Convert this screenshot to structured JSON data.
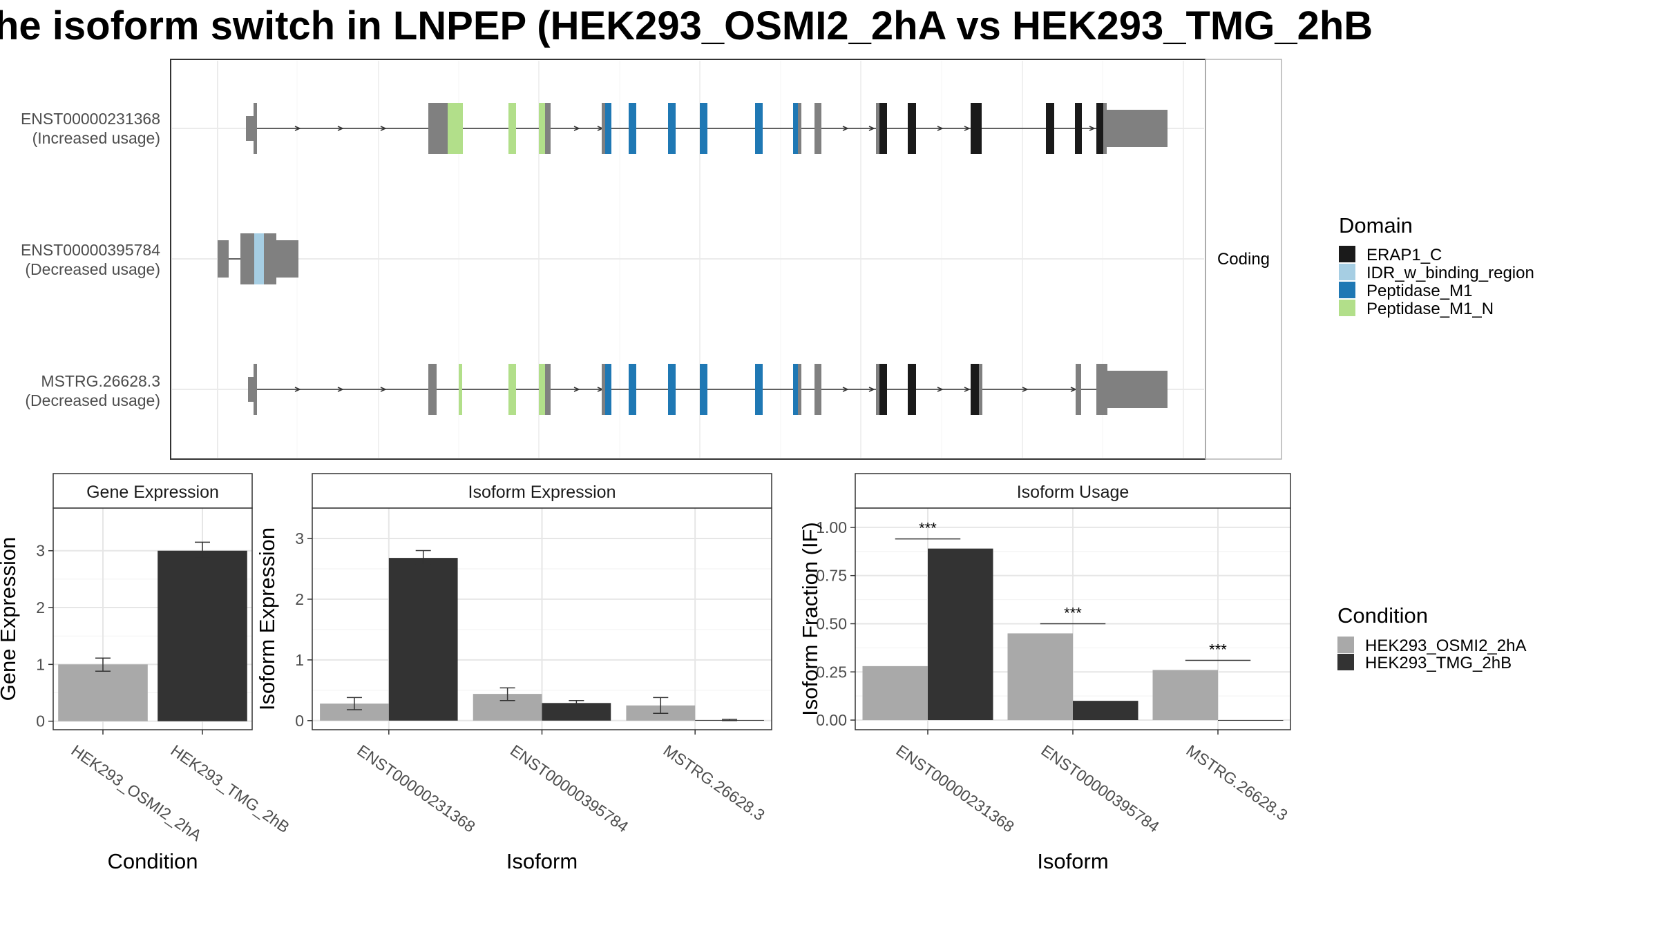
{
  "title": "he isoform switch in LNPEP (HEK293_OSMI2_2hA vs HEK293_TMG_2hB",
  "structure": {
    "strip_label": "Coding",
    "transcripts": [
      {
        "name": "ENST00000231368",
        "usage": "(Increased usage)"
      },
      {
        "name": "ENST00000395784",
        "usage": "(Decreased usage)"
      },
      {
        "name": "MSTRG.26628.3",
        "usage": "(Decreased usage)"
      }
    ]
  },
  "legends": {
    "domain": {
      "title": "Domain",
      "items": [
        {
          "label": "ERAP1_C",
          "color": "#1a1a1a"
        },
        {
          "label": "IDR_w_binding_region",
          "color": "#a6cee3"
        },
        {
          "label": "Peptidase_M1",
          "color": "#1f78b4"
        },
        {
          "label": "Peptidase_M1_N",
          "color": "#b2df8a"
        }
      ]
    },
    "condition": {
      "title": "Condition",
      "items": [
        {
          "label": "HEK293_OSMI2_2hA",
          "color": "#a9a9a9"
        },
        {
          "label": "HEK293_TMG_2hB",
          "color": "#333333"
        }
      ]
    }
  },
  "colors": {
    "noncoding": "#808080",
    "cond_a": "#a9a9a9",
    "cond_b": "#333333"
  },
  "chart_data": [
    {
      "type": "bar",
      "title": "Gene Expression",
      "xlabel": "Condition",
      "ylabel": "Gene Expression",
      "categories": [
        "HEK293_OSMI2_2hA",
        "HEK293_TMG_2hB"
      ],
      "values": [
        1.0,
        3.0
      ],
      "error": [
        [
          0.88,
          1.11
        ],
        [
          2.87,
          3.15
        ]
      ],
      "yticks": [
        0,
        1,
        2,
        3
      ],
      "ylim": [
        -0.15,
        3.75
      ]
    },
    {
      "type": "bar",
      "title": "Isoform Expression",
      "xlabel": "Isoform",
      "ylabel": "Isoform Expression",
      "categories": [
        "ENST00000231368",
        "ENST00000395784",
        "MSTRG.26628.3"
      ],
      "series": [
        {
          "name": "HEK293_OSMI2_2hA",
          "values": [
            0.28,
            0.44,
            0.25
          ],
          "error": [
            [
              0.18,
              0.38
            ],
            [
              0.33,
              0.54
            ],
            [
              0.12,
              0.38
            ]
          ]
        },
        {
          "name": "HEK293_TMG_2hB",
          "values": [
            2.68,
            0.29,
            0.01
          ],
          "error": [
            [
              2.57,
              2.8
            ],
            [
              0.25,
              0.33
            ],
            [
              0.0,
              0.02
            ]
          ]
        }
      ],
      "yticks": [
        0,
        1,
        2,
        3
      ],
      "ylim": [
        -0.15,
        3.5
      ]
    },
    {
      "type": "bar",
      "title": "Isoform Usage",
      "xlabel": "Isoform",
      "ylabel": "Isoform Fraction (IF)",
      "categories": [
        "ENST00000231368",
        "ENST00000395784",
        "MSTRG.26628.3"
      ],
      "series": [
        {
          "name": "HEK293_OSMI2_2hA",
          "values": [
            0.28,
            0.45,
            0.26
          ]
        },
        {
          "name": "HEK293_TMG_2hB",
          "values": [
            0.89,
            0.1,
            0.0
          ]
        }
      ],
      "significance": [
        "***",
        "***",
        "***"
      ],
      "sig_y": [
        0.94,
        0.5,
        0.31
      ],
      "yticks": [
        "0.00",
        "0.25",
        "0.50",
        "0.75",
        "1.00"
      ],
      "ylim": [
        -0.05,
        1.1
      ]
    }
  ]
}
